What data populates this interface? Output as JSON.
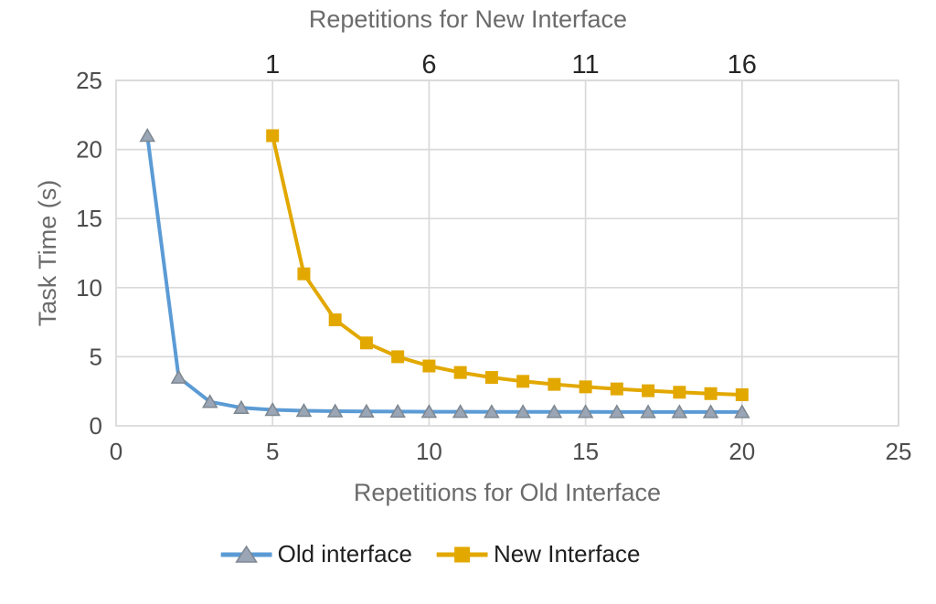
{
  "chart_data": {
    "type": "line",
    "top_axis": {
      "title": "Repetitions for New Interface",
      "ticks": [
        1,
        6,
        11,
        16
      ],
      "offset": 4
    },
    "bottom_axis": {
      "title": "Repetitions for Old Interface",
      "ticks": [
        0,
        5,
        10,
        15,
        20,
        25
      ],
      "range": [
        0,
        25
      ]
    },
    "y_axis": {
      "title": "Task Time (s)",
      "ticks": [
        0,
        5,
        10,
        15,
        20,
        25
      ],
      "range": [
        0,
        25
      ]
    },
    "grid_color": "#D9D9D9",
    "legend_position": "bottom",
    "series": [
      {
        "name": "Old interface",
        "x_axis": "bottom",
        "marker": "triangle",
        "color": "#5B9BD5",
        "marker_fill": "#9AA5B6",
        "marker_stroke": "#7E8790",
        "repetitions": [
          1,
          2,
          3,
          4,
          5,
          6,
          7,
          8,
          9,
          10,
          11,
          12,
          13,
          14,
          15,
          16,
          17,
          18,
          19,
          20
        ],
        "values": [
          21,
          3.5,
          1.74,
          1.31,
          1.16,
          1.09,
          1.06,
          1.04,
          1.03,
          1.02,
          1.02,
          1.01,
          1.01,
          1.01,
          1.01,
          1.0,
          1.0,
          1.0,
          1.0,
          1.0
        ]
      },
      {
        "name": "New Interface",
        "x_axis": "top",
        "marker": "square",
        "color": "#E2A800",
        "marker_fill": "#E2A800",
        "marker_stroke": "#E2A800",
        "repetitions": [
          1,
          2,
          3,
          4,
          5,
          6,
          7,
          8,
          9,
          10,
          11,
          12,
          13,
          14,
          15,
          16
        ],
        "values": [
          21,
          11,
          7.67,
          6,
          5,
          4.33,
          3.86,
          3.5,
          3.22,
          3.0,
          2.82,
          2.67,
          2.54,
          2.43,
          2.33,
          2.25
        ]
      }
    ]
  }
}
